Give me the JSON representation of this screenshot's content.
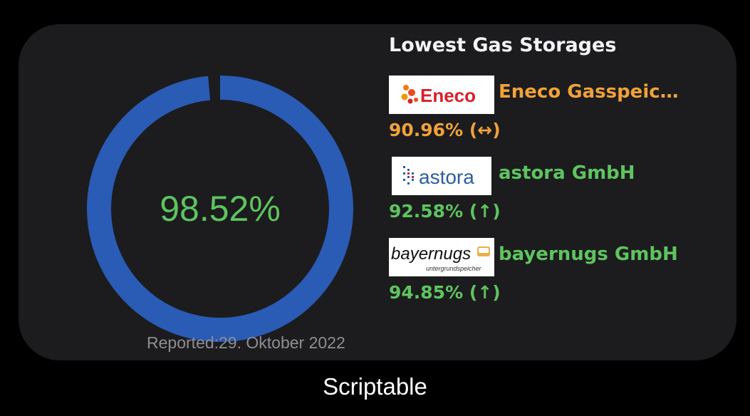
{
  "widget": {
    "ring": {
      "percent": 98.52,
      "color": "#2a5bb5",
      "label": "98.52%",
      "label_color": "#5ec45f"
    },
    "reported": "Reported:29. Oktober 2022"
  },
  "storages": {
    "heading": "Lowest Gas Storages",
    "items": [
      {
        "logo_text": "Eneco",
        "name": "Eneco Gasspeic…",
        "value": "90.96% (↔)",
        "color": "#f0a23b"
      },
      {
        "logo_text": "astora",
        "name": "astora GmbH",
        "value": "92.58% (↑)",
        "color": "#5ec45f"
      },
      {
        "logo_text": "bayernugs",
        "logo_subtext": "untergrundspeicher",
        "name": "bayernugs GmbH",
        "value": "94.85% (↑)",
        "color": "#5ec45f"
      }
    ]
  },
  "footer": {
    "app_name": "Scriptable"
  }
}
